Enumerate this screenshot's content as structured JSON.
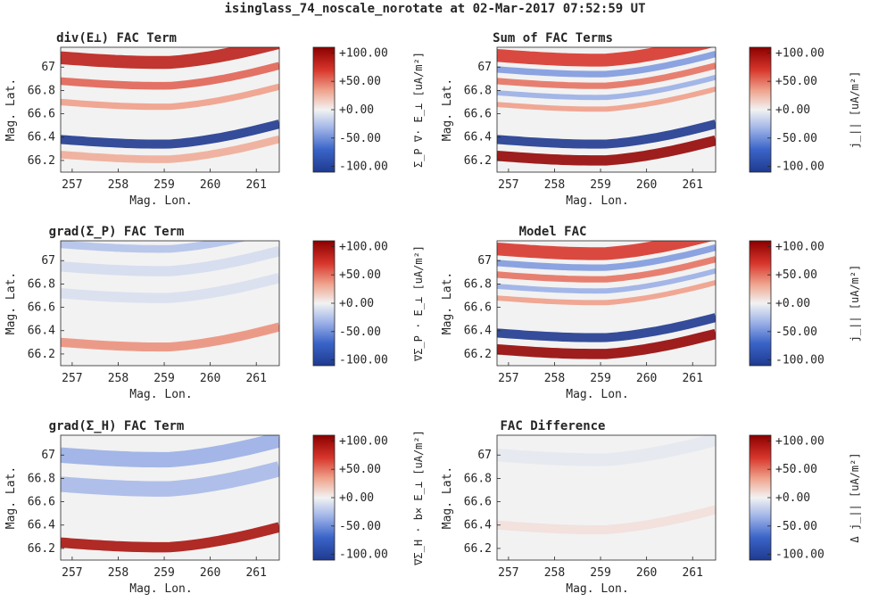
{
  "figure": {
    "title": "isinglass_74_noscale_norotate at 02-Mar-2017 07:52:59 UT"
  },
  "colors": {
    "neg": "#1f3a8f",
    "mid": "#f2f2f2",
    "pos": "#8b0000"
  },
  "chart_data": [
    {
      "type": "heatmap",
      "title": "div(E⊥) FAC Term",
      "xlabel": "Mag. Lon.",
      "ylabel": "Mag. Lat.",
      "x_ticks": [
        "257",
        "258",
        "259",
        "260",
        "261"
      ],
      "y_ticks": [
        "67",
        "66.8",
        "66.6",
        "66.4",
        "66.2"
      ],
      "xlim": [
        256.75,
        261.5
      ],
      "ylim": [
        66.1,
        67.17
      ],
      "colorbar": {
        "ticks": [
          "+100.00",
          "+50.00",
          "+0.00",
          "-50.00",
          "-100.00"
        ],
        "label": "Σ_P ∇· E_⊥ [uA/m²]",
        "clim": [
          -110,
          110
        ]
      },
      "bands": [
        {
          "value": 85,
          "lat": 67.08,
          "width": 0.05
        },
        {
          "value": 55,
          "lat": 66.88,
          "width": 0.03
        },
        {
          "value": 35,
          "lat": 66.7,
          "width": 0.025
        },
        {
          "value": -110,
          "lat": 66.38,
          "width": 0.035
        },
        {
          "value": 30,
          "lat": 66.25,
          "width": 0.03
        }
      ]
    },
    {
      "type": "heatmap",
      "title": "Sum of FAC Terms",
      "xlabel": "Mag. Lon.",
      "ylabel": "Mag. Lat.",
      "x_ticks": [
        "257",
        "258",
        "259",
        "260",
        "261"
      ],
      "y_ticks": [
        "67",
        "66.8",
        "66.6",
        "66.4",
        "66.2"
      ],
      "xlim": [
        256.75,
        261.5
      ],
      "ylim": [
        66.1,
        67.17
      ],
      "colorbar": {
        "ticks": [
          "+100.00",
          "+50.00",
          "+0.00",
          "-50.00",
          "-100.00"
        ],
        "label": "j_|| [uA/m²]",
        "clim": [
          -110,
          110
        ]
      },
      "bands": [
        {
          "value": 70,
          "lat": 67.1,
          "width": 0.05
        },
        {
          "value": -45,
          "lat": 66.98,
          "width": 0.025
        },
        {
          "value": 50,
          "lat": 66.88,
          "width": 0.025
        },
        {
          "value": -35,
          "lat": 66.78,
          "width": 0.02
        },
        {
          "value": 35,
          "lat": 66.68,
          "width": 0.02
        },
        {
          "value": -110,
          "lat": 66.38,
          "width": 0.035
        },
        {
          "value": 105,
          "lat": 66.24,
          "width": 0.04
        }
      ]
    },
    {
      "type": "heatmap",
      "title": "grad(Σ_P) FAC Term",
      "xlabel": "Mag. Lon.",
      "ylabel": "Mag. Lat.",
      "x_ticks": [
        "257",
        "258",
        "259",
        "260",
        "261"
      ],
      "y_ticks": [
        "67",
        "66.8",
        "66.6",
        "66.4",
        "66.2"
      ],
      "xlim": [
        256.75,
        261.5
      ],
      "ylim": [
        66.1,
        67.17
      ],
      "colorbar": {
        "ticks": [
          "+100.00",
          "+50.00",
          "+0.00",
          "-50.00",
          "-100.00"
        ],
        "label": "∇Σ_P · E_⊥ [uA/m²]",
        "clim": [
          -110,
          110
        ]
      },
      "bands": [
        {
          "value": -25,
          "lat": 67.14,
          "width": 0.03
        },
        {
          "value": -12,
          "lat": 66.95,
          "width": 0.04
        },
        {
          "value": -10,
          "lat": 66.72,
          "width": 0.04
        },
        {
          "value": 40,
          "lat": 66.3,
          "width": 0.035
        }
      ]
    },
    {
      "type": "heatmap",
      "title": "Model FAC",
      "xlabel": "Mag. Lon.",
      "ylabel": "Mag. Lat.",
      "x_ticks": [
        "257",
        "258",
        "259",
        "260",
        "261"
      ],
      "y_ticks": [
        "67",
        "66.8",
        "66.6",
        "66.4",
        "66.2"
      ],
      "xlim": [
        256.75,
        261.5
      ],
      "ylim": [
        66.1,
        67.17
      ],
      "colorbar": {
        "ticks": [
          "+100.00",
          "+50.00",
          "+0.00",
          "-50.00",
          "-100.00"
        ],
        "label": "j_|| [uA/m²]",
        "clim": [
          -110,
          110
        ]
      },
      "bands": [
        {
          "value": 70,
          "lat": 67.1,
          "width": 0.05
        },
        {
          "value": -45,
          "lat": 66.98,
          "width": 0.025
        },
        {
          "value": 50,
          "lat": 66.88,
          "width": 0.025
        },
        {
          "value": -35,
          "lat": 66.78,
          "width": 0.02
        },
        {
          "value": 35,
          "lat": 66.68,
          "width": 0.02
        },
        {
          "value": -110,
          "lat": 66.38,
          "width": 0.035
        },
        {
          "value": 105,
          "lat": 66.24,
          "width": 0.04
        }
      ]
    },
    {
      "type": "heatmap",
      "title": "grad(Σ_H) FAC Term",
      "xlabel": "Mag. Lon.",
      "ylabel": "Mag. Lat.",
      "x_ticks": [
        "257",
        "258",
        "259",
        "260",
        "261"
      ],
      "y_ticks": [
        "67",
        "66.8",
        "66.6",
        "66.4",
        "66.2"
      ],
      "xlim": [
        256.75,
        261.5
      ],
      "ylim": [
        66.1,
        67.17
      ],
      "colorbar": {
        "ticks": [
          "+100.00",
          "+50.00",
          "+0.00",
          "-50.00",
          "-100.00"
        ],
        "label": "∇Σ_H · b× E_⊥ [uA/m²]",
        "clim": [
          -110,
          110
        ]
      },
      "bands": [
        {
          "value": -35,
          "lat": 67.0,
          "width": 0.06
        },
        {
          "value": -30,
          "lat": 66.75,
          "width": 0.06
        },
        {
          "value": 95,
          "lat": 66.25,
          "width": 0.04
        }
      ]
    },
    {
      "type": "heatmap",
      "title": "FAC Difference",
      "xlabel": "Mag. Lon.",
      "ylabel": "Mag. Lat.",
      "x_ticks": [
        "257",
        "258",
        "259",
        "260",
        "261"
      ],
      "y_ticks": [
        "67",
        "66.8",
        "66.6",
        "66.4",
        "66.2"
      ],
      "xlim": [
        256.75,
        261.5
      ],
      "ylim": [
        66.1,
        67.17
      ],
      "colorbar": {
        "ticks": [
          "+100.00",
          "+50.00",
          "+0.00",
          "-50.00",
          "-100.00"
        ],
        "label": "Δ j_|| [uA/m²]",
        "clim": [
          -110,
          110
        ]
      },
      "bands": [
        {
          "value": -5,
          "lat": 67.0,
          "width": 0.05
        },
        {
          "value": 8,
          "lat": 66.4,
          "width": 0.035
        }
      ]
    }
  ]
}
